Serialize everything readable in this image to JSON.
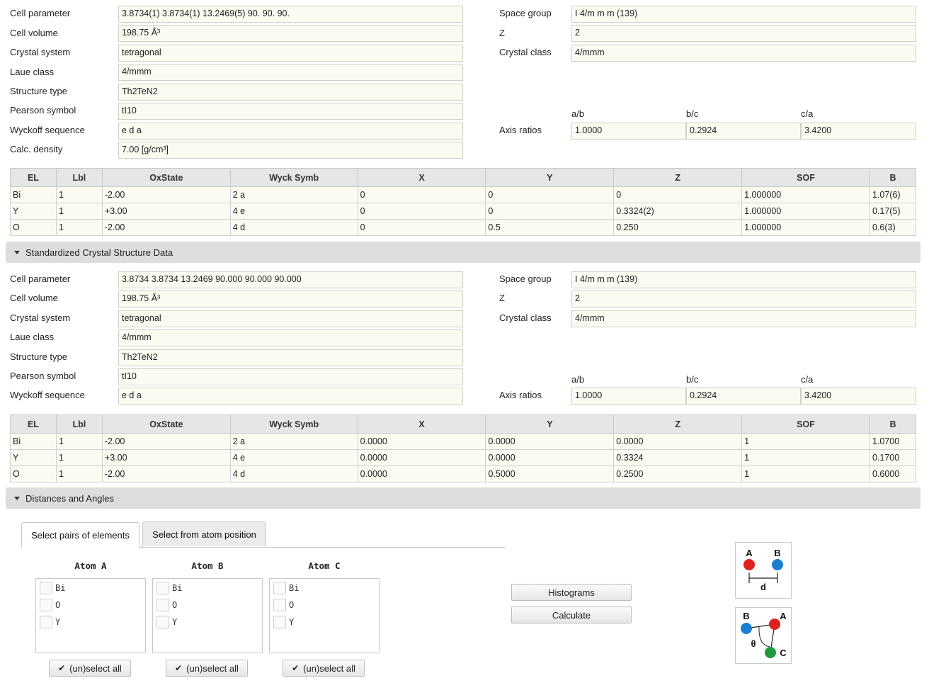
{
  "experimental": {
    "left_fields": [
      {
        "label": "Cell parameter",
        "value": "3.8734(1) 3.8734(1) 13.2469(5) 90. 90. 90."
      },
      {
        "label": "Cell volume",
        "value": "198.75  Å³"
      },
      {
        "label": "Crystal system",
        "value": "tetragonal"
      },
      {
        "label": "Laue class",
        "value": "4/mmm"
      },
      {
        "label": "Structure type",
        "value": "Th2TeN2"
      },
      {
        "label": "Pearson symbol",
        "value": "tI10"
      },
      {
        "label": "Wyckoff sequence",
        "value": "e d a"
      },
      {
        "label": "Calc. density",
        "value": "7.00 [g/cm³]"
      }
    ],
    "right_fields": [
      {
        "label": "Space group",
        "value": "I 4/m m m   (139)"
      },
      {
        "label": "Z",
        "value": "2"
      },
      {
        "label": "Crystal class",
        "value": "4/mmm"
      }
    ],
    "axis_ratios": {
      "label": "Axis ratios",
      "headers": [
        "a/b",
        "b/c",
        "c/a"
      ],
      "values": [
        "1.0000",
        "0.2924",
        "3.4200"
      ]
    },
    "table": {
      "columns": [
        "EL",
        "Lbl",
        "OxState",
        "Wyck Symb",
        "X",
        "Y",
        "Z",
        "SOF",
        "B"
      ],
      "rows": [
        [
          "Bi",
          "1",
          "-2.00",
          "2 a",
          "0",
          "0",
          "0",
          "1.000000",
          "1.07(6)"
        ],
        [
          "Y",
          "1",
          "+3.00",
          "4 e",
          "0",
          "0",
          "0.3324(2)",
          "1.000000",
          "0.17(5)"
        ],
        [
          "O",
          "1",
          "-2.00",
          "4 d",
          "0",
          "0.5",
          "0.250",
          "1.000000",
          "0.6(3)"
        ]
      ]
    }
  },
  "standardized_section": {
    "title": "Standardized Crystal Structure Data"
  },
  "standardized": {
    "left_fields": [
      {
        "label": "Cell parameter",
        "value": "3.8734 3.8734 13.2469 90.000 90.000 90.000"
      },
      {
        "label": "Cell volume",
        "value": "198.75  Å³"
      },
      {
        "label": "Crystal system",
        "value": "tetragonal"
      },
      {
        "label": "Laue class",
        "value": "4/mmm"
      },
      {
        "label": "Structure type",
        "value": "Th2TeN2"
      },
      {
        "label": "Pearson symbol",
        "value": "tI10"
      },
      {
        "label": "Wyckoff sequence",
        "value": "e d a"
      }
    ],
    "right_fields": [
      {
        "label": "Space group",
        "value": "I 4/m m m   (139)"
      },
      {
        "label": "Z",
        "value": "2"
      },
      {
        "label": "Crystal class",
        "value": "4/mmm"
      }
    ],
    "axis_ratios": {
      "label": "Axis ratios",
      "headers": [
        "a/b",
        "b/c",
        "c/a"
      ],
      "values": [
        "1.0000",
        "0.2924",
        "3.4200"
      ]
    },
    "table": {
      "columns": [
        "EL",
        "Lbl",
        "OxState",
        "Wyck Symb",
        "X",
        "Y",
        "Z",
        "SOF",
        "B"
      ],
      "rows": [
        [
          "Bi",
          "1",
          "-2.00",
          "2 a",
          "0.0000",
          "0.0000",
          "0.0000",
          "1",
          "1.0700"
        ],
        [
          "Y",
          "1",
          "+3.00",
          "4 e",
          "0.0000",
          "0.0000",
          "0.3324",
          "1",
          "0.1700"
        ],
        [
          "O",
          "1",
          "-2.00",
          "4 d",
          "0.0000",
          "0.5000",
          "0.2500",
          "1",
          "0.6000"
        ]
      ]
    }
  },
  "distances_section": {
    "title": "Distances and Angles"
  },
  "tabs": [
    {
      "label": "Select pairs of elements",
      "active": true
    },
    {
      "label": "Select from atom position",
      "active": false
    }
  ],
  "atom_selectors": [
    {
      "title": "Atom A",
      "options": [
        "Bi",
        "O",
        "Y"
      ],
      "select_all": "(un)select all"
    },
    {
      "title": "Atom B",
      "options": [
        "Bi",
        "O",
        "Y"
      ],
      "select_all": "(un)select all"
    },
    {
      "title": "Atom C",
      "options": [
        "Bi",
        "O",
        "Y"
      ],
      "select_all": "(un)select all"
    }
  ],
  "buttons": {
    "histograms": "Histograms",
    "calculate": "Calculate"
  },
  "diagrams": {
    "distance": {
      "a": "A",
      "b": "B",
      "d": "d"
    },
    "angle": {
      "a": "A",
      "b": "B",
      "c": "C",
      "theta": "θ"
    }
  },
  "colors": {
    "atom_a": "#e0201c",
    "atom_b": "#1a7fd1",
    "atom_c": "#1e9a3c"
  }
}
